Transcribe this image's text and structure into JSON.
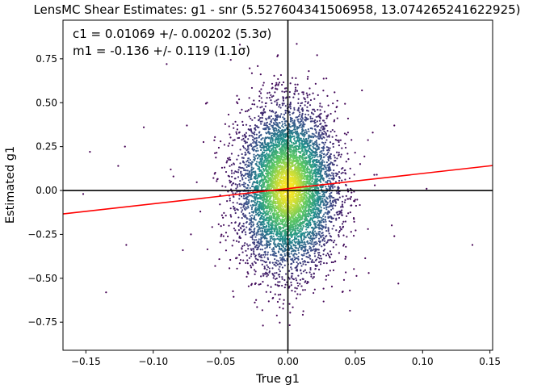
{
  "chart_data": {
    "type": "scatter",
    "title": "LensMC Shear Estimates: g1  - snr (5.527604341506958, 13.074265241622925)",
    "xlabel": "True g1",
    "ylabel": "Estimated g1",
    "xlim": [
      -0.167,
      0.152
    ],
    "ylim": [
      -0.91,
      0.97
    ],
    "xticks": [
      -0.15,
      -0.1,
      -0.05,
      0.0,
      0.05,
      0.1,
      0.15
    ],
    "xtick_labels": [
      "−0.15",
      "−0.10",
      "−0.05",
      "0.00",
      "0.05",
      "0.10",
      "0.15"
    ],
    "yticks": [
      -0.75,
      -0.5,
      -0.25,
      0.0,
      0.25,
      0.5,
      0.75
    ],
    "ytick_labels": [
      "−0.75",
      "−0.50",
      "−0.25",
      "0.00",
      "0.25",
      "0.50",
      "0.75"
    ],
    "annotations": {
      "c1_text": "c1 = 0.01069 +/- 0.00202 (5.3σ)",
      "m1_text": "m1 = -0.136 +/- 0.119 (1.1σ)"
    },
    "fit_line": {
      "intercept": 0.01069,
      "slope": 0.864,
      "color": "#ff0000"
    },
    "reference_lines": {
      "x": 0.0,
      "y": 0.0,
      "color": "#000000"
    },
    "cloud": {
      "x_center": 0.0,
      "x_sd": 0.018,
      "y_center": 0.01069,
      "y_sd": 0.23,
      "n_points": 6500,
      "colormap": "viridis"
    },
    "outliers": [
      {
        "x": -0.152,
        "y": -0.02
      },
      {
        "x": -0.147,
        "y": 0.22
      },
      {
        "x": -0.135,
        "y": -0.58
      },
      {
        "x": -0.126,
        "y": 0.14
      },
      {
        "x": -0.121,
        "y": 0.25
      },
      {
        "x": -0.12,
        "y": -0.31
      },
      {
        "x": -0.107,
        "y": 0.36
      },
      {
        "x": -0.09,
        "y": 0.72
      },
      {
        "x": -0.087,
        "y": 0.12
      },
      {
        "x": -0.085,
        "y": 0.08
      },
      {
        "x": -0.078,
        "y": -0.34
      },
      {
        "x": -0.075,
        "y": 0.37
      },
      {
        "x": -0.072,
        "y": -0.25
      },
      {
        "x": -0.065,
        "y": -0.12
      },
      {
        "x": 0.063,
        "y": 0.33
      },
      {
        "x": 0.066,
        "y": 0.09
      },
      {
        "x": 0.079,
        "y": 0.37
      },
      {
        "x": 0.079,
        "y": -0.26
      },
      {
        "x": 0.082,
        "y": -0.53
      },
      {
        "x": 0.103,
        "y": 0.01
      },
      {
        "x": 0.137,
        "y": -0.31
      },
      {
        "x": 0.06,
        "y": -0.47
      },
      {
        "x": 0.055,
        "y": 0.57
      },
      {
        "x": 0.049,
        "y": -0.06
      },
      {
        "x": -0.06,
        "y": 0.5
      },
      {
        "x": -0.054,
        "y": -0.43
      },
      {
        "x": 0.046,
        "y": -0.57
      },
      {
        "x": -0.05,
        "y": 0.28
      }
    ],
    "colors": {
      "scatter_low": "#440154",
      "scatter_high": "#fde725",
      "fit": "#ff0000",
      "axes": "#000000"
    }
  }
}
